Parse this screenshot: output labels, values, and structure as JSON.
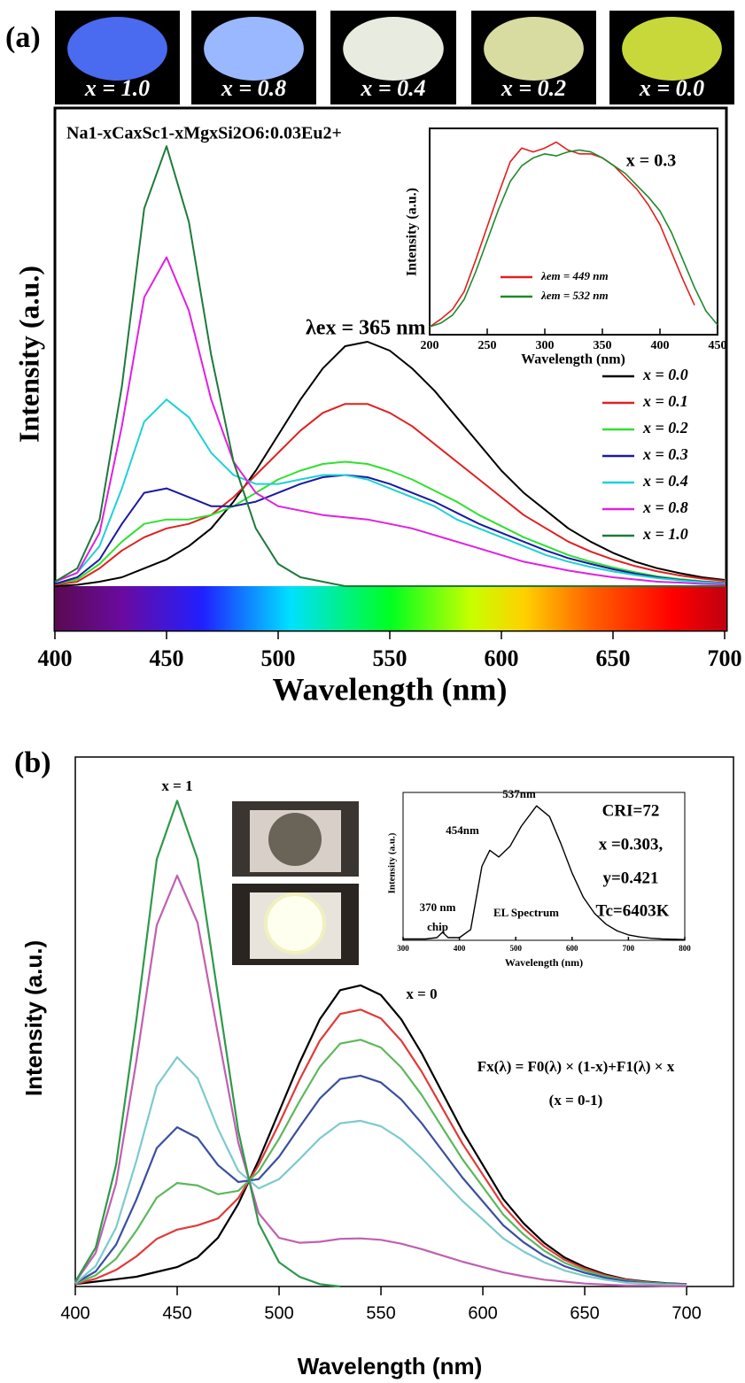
{
  "panels": [
    "(a)",
    "(b)"
  ],
  "photos": [
    "x = 1.0",
    "x = 0.8",
    "x = 0.4",
    "x = 0.2",
    "x = 0.0"
  ],
  "chart_data": [
    {
      "type": "line",
      "title": "Na1-xCaxSc1-xMgxSi2O6:0.03Eu2+",
      "annotations": [
        "λex = 365 nm"
      ],
      "xlabel": "Wavelength (nm)",
      "ylabel": "Intensity (a.u.)",
      "xlim": [
        400,
        700
      ],
      "xticks": [
        400,
        450,
        500,
        550,
        600,
        650,
        700
      ],
      "ylim": [
        0,
        1.06
      ],
      "legend": "right",
      "x": [
        400,
        410,
        420,
        430,
        440,
        450,
        460,
        470,
        480,
        490,
        500,
        510,
        520,
        530,
        540,
        550,
        560,
        570,
        580,
        590,
        600,
        610,
        620,
        630,
        640,
        650,
        660,
        670,
        680,
        690,
        700
      ],
      "series": [
        {
          "name": "x = 0.0",
          "color": "#000000",
          "values": [
            0,
            0.003,
            0.01,
            0.02,
            0.04,
            0.06,
            0.09,
            0.13,
            0.19,
            0.26,
            0.34,
            0.42,
            0.49,
            0.54,
            0.55,
            0.53,
            0.49,
            0.44,
            0.38,
            0.32,
            0.26,
            0.21,
            0.17,
            0.13,
            0.1,
            0.075,
            0.055,
            0.04,
            0.029,
            0.02,
            0.014
          ]
        },
        {
          "name": "x = 0.1",
          "color": "#e02020",
          "values": [
            0.003,
            0.01,
            0.04,
            0.08,
            0.11,
            0.13,
            0.14,
            0.16,
            0.2,
            0.25,
            0.3,
            0.35,
            0.39,
            0.41,
            0.41,
            0.39,
            0.36,
            0.32,
            0.28,
            0.24,
            0.2,
            0.16,
            0.13,
            0.1,
            0.078,
            0.06,
            0.045,
            0.033,
            0.024,
            0.017,
            0.012
          ]
        },
        {
          "name": "x = 0.2",
          "color": "#30e030",
          "values": [
            0.005,
            0.015,
            0.05,
            0.1,
            0.14,
            0.15,
            0.15,
            0.16,
            0.18,
            0.21,
            0.24,
            0.26,
            0.275,
            0.28,
            0.275,
            0.26,
            0.24,
            0.215,
            0.19,
            0.16,
            0.135,
            0.11,
            0.09,
            0.07,
            0.055,
            0.042,
            0.031,
            0.022,
            0.016,
            0.011,
            0.008
          ]
        },
        {
          "name": "x = 0.3",
          "color": "#1a1aa0",
          "values": [
            0.005,
            0.02,
            0.06,
            0.14,
            0.21,
            0.22,
            0.2,
            0.18,
            0.18,
            0.19,
            0.21,
            0.23,
            0.245,
            0.25,
            0.245,
            0.23,
            0.21,
            0.19,
            0.165,
            0.14,
            0.12,
            0.1,
            0.08,
            0.063,
            0.05,
            0.038,
            0.028,
            0.02,
            0.014,
            0.01,
            0.007
          ]
        },
        {
          "name": "x = 0.4",
          "color": "#20d0d8",
          "values": [
            0.01,
            0.03,
            0.09,
            0.22,
            0.37,
            0.42,
            0.38,
            0.3,
            0.25,
            0.23,
            0.23,
            0.24,
            0.25,
            0.25,
            0.24,
            0.22,
            0.2,
            0.18,
            0.15,
            0.13,
            0.11,
            0.09,
            0.07,
            0.055,
            0.043,
            0.033,
            0.025,
            0.018,
            0.013,
            0.009,
            0.006
          ]
        },
        {
          "name": "x = 0.8",
          "color": "#e020e0",
          "values": [
            0.01,
            0.03,
            0.12,
            0.36,
            0.65,
            0.74,
            0.62,
            0.42,
            0.28,
            0.21,
            0.18,
            0.17,
            0.16,
            0.155,
            0.15,
            0.14,
            0.13,
            0.115,
            0.1,
            0.085,
            0.07,
            0.055,
            0.045,
            0.035,
            0.027,
            0.02,
            0.015,
            0.01,
            0.008,
            0.005,
            0.004
          ]
        },
        {
          "name": "x = 1.0",
          "color": "#1e7a3a",
          "values": [
            0.01,
            0.04,
            0.15,
            0.45,
            0.85,
            0.99,
            0.82,
            0.52,
            0.28,
            0.13,
            0.05,
            0.02,
            0.01,
            0,
            0,
            0,
            0,
            0,
            0,
            0,
            0,
            0,
            0,
            0,
            0,
            0,
            0,
            0,
            0,
            0,
            0
          ]
        }
      ]
    },
    {
      "type": "line",
      "annotations": [
        "x = 0.3"
      ],
      "xlabel": "Wavelength (nm)",
      "ylabel": "Intensity (a.u.)",
      "xlim": [
        200,
        450
      ],
      "xticks": [
        200,
        250,
        300,
        350,
        400,
        450
      ],
      "ylim": [
        0,
        1.05
      ],
      "legend": "lower center",
      "x": [
        200,
        210,
        220,
        230,
        240,
        250,
        260,
        270,
        280,
        290,
        300,
        310,
        320,
        330,
        340,
        350,
        360,
        370,
        380,
        390,
        400,
        410,
        420,
        430,
        440,
        450
      ],
      "series": [
        {
          "name": "λem = 449 nm",
          "color": "#e02020",
          "values": [
            0.04,
            0.08,
            0.13,
            0.22,
            0.38,
            0.55,
            0.72,
            0.88,
            0.95,
            0.93,
            0.95,
            0.98,
            0.94,
            0.92,
            0.92,
            0.9,
            0.86,
            0.8,
            0.74,
            0.66,
            0.56,
            0.42,
            0.28,
            0.15,
            null,
            null
          ]
        },
        {
          "name": "λem = 532 nm",
          "color": "#1e8a2a",
          "values": [
            0.04,
            0.06,
            0.1,
            0.18,
            0.32,
            0.48,
            0.64,
            0.78,
            0.86,
            0.9,
            0.92,
            0.91,
            0.93,
            0.94,
            0.93,
            0.9,
            0.86,
            0.82,
            0.76,
            0.7,
            0.63,
            0.52,
            0.38,
            0.24,
            0.12,
            0.05
          ]
        }
      ]
    },
    {
      "type": "line",
      "annotations": [
        "x = 1",
        "x = 0",
        "Fx(λ) = F0(λ) × (1-x)+F1(λ) × x",
        "(x = 0-1)"
      ],
      "xlabel": "Wavelength (nm)",
      "ylabel": "Intensity (a.u.)",
      "xlim": [
        400,
        723
      ],
      "xticks": [
        400,
        450,
        500,
        550,
        600,
        650,
        700
      ],
      "ylim": [
        0,
        1.09
      ],
      "x": [
        400,
        410,
        420,
        430,
        440,
        450,
        460,
        470,
        480,
        490,
        500,
        510,
        520,
        530,
        540,
        550,
        560,
        570,
        580,
        590,
        600,
        610,
        620,
        630,
        640,
        650,
        660,
        670,
        680,
        690,
        700
      ],
      "series": [
        {
          "color": "#000000",
          "values": [
            0.005,
            0.01,
            0.015,
            0.02,
            0.03,
            0.04,
            0.06,
            0.1,
            0.17,
            0.26,
            0.36,
            0.46,
            0.55,
            0.61,
            0.62,
            0.6,
            0.55,
            0.48,
            0.4,
            0.32,
            0.25,
            0.18,
            0.13,
            0.09,
            0.06,
            0.04,
            0.025,
            0.015,
            0.01,
            0.007,
            0.005
          ]
        },
        {
          "color": "#e03a3a",
          "values": [
            0.005,
            0.016,
            0.034,
            0.062,
            0.098,
            0.117,
            0.126,
            0.14,
            0.182,
            0.25,
            0.335,
            0.425,
            0.506,
            0.561,
            0.57,
            0.552,
            0.506,
            0.442,
            0.368,
            0.294,
            0.23,
            0.166,
            0.12,
            0.083,
            0.055,
            0.037,
            0.023,
            0.014,
            0.009,
            0.006,
            0.005
          ]
        },
        {
          "color": "#5cb85c",
          "values": [
            0.006,
            0.023,
            0.057,
            0.115,
            0.183,
            0.213,
            0.208,
            0.19,
            0.197,
            0.237,
            0.304,
            0.381,
            0.452,
            0.5,
            0.508,
            0.492,
            0.451,
            0.394,
            0.328,
            0.262,
            0.205,
            0.148,
            0.107,
            0.074,
            0.049,
            0.033,
            0.021,
            0.012,
            0.008,
            0.006,
            0.004
          ]
        },
        {
          "color": "#3a4fa0",
          "values": [
            0.007,
            0.031,
            0.086,
            0.179,
            0.285,
            0.328,
            0.306,
            0.25,
            0.215,
            0.221,
            0.267,
            0.328,
            0.387,
            0.427,
            0.434,
            0.42,
            0.385,
            0.336,
            0.28,
            0.224,
            0.175,
            0.126,
            0.091,
            0.063,
            0.042,
            0.028,
            0.018,
            0.011,
            0.007,
            0.005,
            0.004
          ]
        },
        {
          "color": "#7ccacc",
          "values": [
            0.007,
            0.042,
            0.121,
            0.259,
            0.413,
            0.472,
            0.429,
            0.325,
            0.238,
            0.202,
            0.221,
            0.262,
            0.305,
            0.336,
            0.341,
            0.33,
            0.303,
            0.264,
            0.22,
            0.176,
            0.138,
            0.099,
            0.072,
            0.05,
            0.033,
            0.022,
            0.014,
            0.008,
            0.006,
            0.004,
            0.003
          ]
        },
        {
          "color": "#c060b0",
          "values": [
            0.009,
            0.069,
            0.212,
            0.465,
            0.744,
            0.846,
            0.749,
            0.52,
            0.296,
            0.151,
            0.1,
            0.09,
            0.092,
            0.098,
            0.099,
            0.096,
            0.088,
            0.077,
            0.064,
            0.051,
            0.04,
            0.029,
            0.021,
            0.014,
            0.01,
            0.006,
            0.004,
            0.002,
            0.002,
            0.001,
            0.001
          ]
        },
        {
          "color": "#2e9a4a",
          "values": [
            0.01,
            0.08,
            0.25,
            0.55,
            0.88,
            1.0,
            0.88,
            0.6,
            0.32,
            0.13,
            0.05,
            0.02,
            0.005,
            0,
            null,
            null,
            null,
            null,
            null,
            null,
            null,
            null,
            null,
            null,
            null,
            null,
            null,
            null,
            null,
            null,
            null
          ]
        }
      ]
    },
    {
      "type": "line",
      "annotations": [
        "537nm",
        "454nm",
        "370 nm",
        "chip",
        "EL Spectrum",
        "CRI=72",
        "x =0.303,",
        "y=0.421",
        "Tc=6403K"
      ],
      "xlabel": "Wavelength (nm)",
      "ylabel": "Intensity (a.u.)",
      "xlim": [
        300,
        800
      ],
      "xticks": [
        300,
        400,
        500,
        600,
        700,
        800
      ],
      "ylim": [
        0,
        1.1
      ],
      "x": [
        300,
        320,
        340,
        360,
        370,
        380,
        400,
        420,
        440,
        454,
        470,
        490,
        510,
        537,
        560,
        580,
        600,
        620,
        640,
        660,
        680,
        700,
        720,
        740,
        760,
        780,
        800
      ],
      "series": [
        {
          "color": "#000000",
          "values": [
            0.01,
            0.01,
            0.01,
            0.02,
            0.06,
            0.02,
            0.02,
            0.08,
            0.55,
            0.67,
            0.62,
            0.7,
            0.85,
            1.0,
            0.92,
            0.72,
            0.5,
            0.32,
            0.2,
            0.12,
            0.07,
            0.04,
            0.025,
            0.015,
            0.01,
            0.008,
            0.005
          ]
        }
      ]
    }
  ]
}
